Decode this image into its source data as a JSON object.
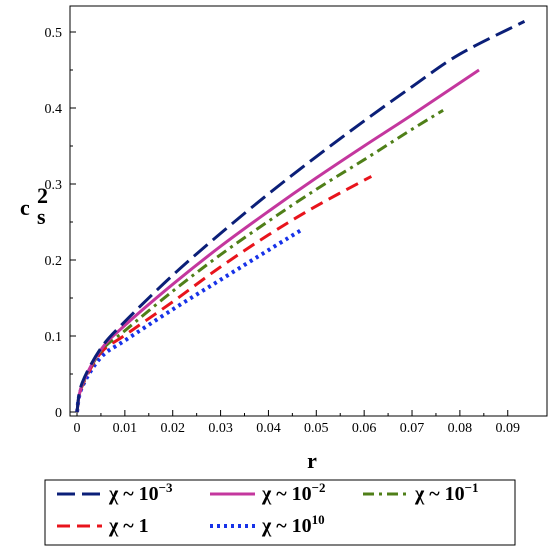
{
  "chart_data": {
    "type": "line",
    "xlabel": "r",
    "ylabel": {
      "base": "c",
      "sup": "2",
      "sub": "s"
    },
    "xlim": [
      0,
      0.0965
    ],
    "ylim": [
      0,
      0.52
    ],
    "xticks": [
      0,
      0.01,
      0.02,
      0.03,
      0.04,
      0.05,
      0.06,
      0.07,
      0.08,
      0.09
    ],
    "xtick_labels": [
      "0",
      "0.01",
      "0.02",
      "0.03",
      "0.04",
      "0.05",
      "0.06",
      "0.07",
      "0.08",
      "0.09"
    ],
    "yticks": [
      0,
      0.1,
      0.2,
      0.3,
      0.4,
      0.5
    ],
    "ytick_labels": [
      "0",
      "0.1",
      "0.2",
      "0.3",
      "0.4",
      "0.5"
    ],
    "grid": false,
    "legend_position": "bottom",
    "series": [
      {
        "name": "χ ~ 10⁻³",
        "label": {
          "prefix": "χ ~ 10",
          "exp": "−3"
        },
        "color": "#0b1f78",
        "dash": "long-dash",
        "x": [
          0,
          0.001,
          0.005,
          0.01,
          0.02,
          0.03,
          0.04,
          0.05,
          0.06,
          0.07,
          0.08,
          0.0935
        ],
        "y": [
          0,
          0.037,
          0.084,
          0.119,
          0.18,
          0.235,
          0.287,
          0.336,
          0.383,
          0.428,
          0.471,
          0.514
        ]
      },
      {
        "name": "χ ~ 10⁻²",
        "label": {
          "prefix": "χ ~ 10",
          "exp": "−2"
        },
        "color": "#c4379e",
        "dash": "solid",
        "x": [
          0,
          0.001,
          0.005,
          0.01,
          0.02,
          0.03,
          0.04,
          0.05,
          0.06,
          0.07,
          0.084
        ],
        "y": [
          0,
          0.035,
          0.082,
          0.114,
          0.168,
          0.218,
          0.264,
          0.308,
          0.35,
          0.391,
          0.45
        ]
      },
      {
        "name": "χ ~ 10⁻¹",
        "label": {
          "prefix": "χ ~ 10",
          "exp": "−1"
        },
        "color": "#4f7f18",
        "dash": "dash-dot",
        "x": [
          0,
          0.001,
          0.005,
          0.01,
          0.02,
          0.03,
          0.04,
          0.05,
          0.06,
          0.07,
          0.0765
        ],
        "y": [
          0,
          0.034,
          0.08,
          0.107,
          0.159,
          0.207,
          0.251,
          0.293,
          0.332,
          0.372,
          0.397
        ]
      },
      {
        "name": "χ ~ 1",
        "label": {
          "prefix": "χ ~ 1",
          "exp": ""
        },
        "color": "#e8141c",
        "dash": "dash",
        "x": [
          0,
          0.001,
          0.005,
          0.01,
          0.02,
          0.03,
          0.04,
          0.05,
          0.0615
        ],
        "y": [
          0,
          0.033,
          0.078,
          0.101,
          0.145,
          0.191,
          0.233,
          0.271,
          0.31
        ]
      },
      {
        "name": "χ ~ 10¹⁰",
        "label": {
          "prefix": "χ ~ 10",
          "exp": "10"
        },
        "color": "#1732e8",
        "dash": "dot",
        "x": [
          0,
          0.001,
          0.005,
          0.01,
          0.02,
          0.03,
          0.04,
          0.047
        ],
        "y": [
          0,
          0.032,
          0.072,
          0.094,
          0.135,
          0.174,
          0.213,
          0.24
        ]
      }
    ]
  }
}
